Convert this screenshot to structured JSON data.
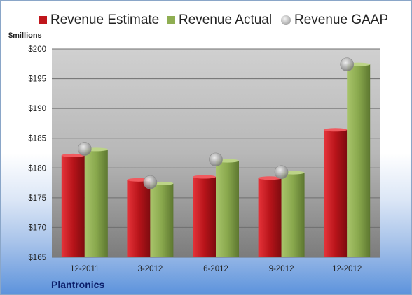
{
  "chart_data": {
    "type": "bar",
    "categories": [
      "12-2011",
      "3-2012",
      "6-2012",
      "9-2012",
      "12-2012"
    ],
    "series": [
      {
        "name": "Revenue Estimate",
        "values": [
          182.1,
          178.0,
          178.5,
          178.3,
          186.4
        ],
        "color": "#c0161b"
      },
      {
        "name": "Revenue Actual",
        "values": [
          183.1,
          177.4,
          181.2,
          179.2,
          197.4
        ],
        "color": "#8fae52"
      },
      {
        "name": "Revenue GAAP",
        "values": [
          183.2,
          177.6,
          181.4,
          179.3,
          197.4
        ],
        "color": "#b0b0b0",
        "marker": "circle"
      }
    ],
    "ylabel": "$millions",
    "ylim": [
      165,
      200
    ],
    "yticks": [
      165,
      170,
      175,
      180,
      185,
      190,
      195,
      200
    ],
    "ytick_labels": [
      "$165",
      "$170",
      "$175",
      "$180",
      "$185",
      "$190",
      "$195",
      "$200"
    ],
    "grid": true,
    "legend_position": "top",
    "company": "Plantronics"
  }
}
